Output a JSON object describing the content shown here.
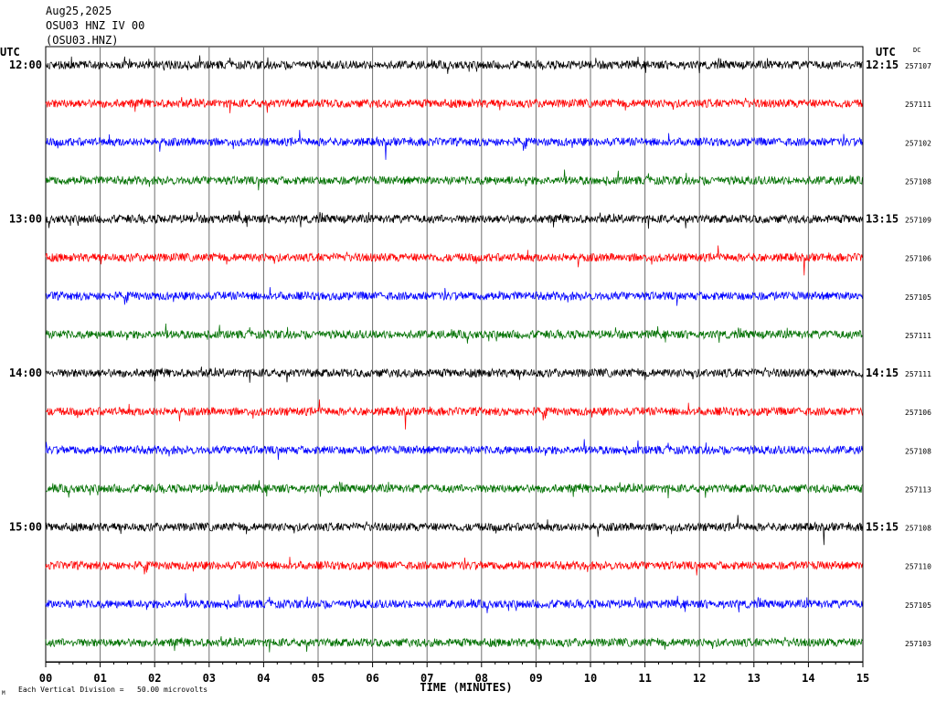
{
  "header": {
    "date": "Aug25,2025",
    "station": "OSU03 HNZ IV 00",
    "code": "(OSU03.HNZ)"
  },
  "utc_left": "UTC",
  "utc_right": "UTC",
  "dc_label": "DC",
  "footer": {
    "scale_text": "Each Vertical Division =   50.00 microvolts"
  },
  "chart_data": {
    "type": "line",
    "title": "",
    "xlabel": "TIME (MINUTES)",
    "x_ticks": [
      "00",
      "01",
      "02",
      "03",
      "04",
      "05",
      "06",
      "07",
      "08",
      "09",
      "10",
      "11",
      "12",
      "13",
      "14",
      "15"
    ],
    "xlim": [
      0,
      15
    ],
    "grid": "vertical lines each minute",
    "trace_colors": [
      "#000000",
      "#ff0000",
      "#0000ff",
      "#007000"
    ],
    "left_time_labels": [
      {
        "row": 0,
        "text": "12:00"
      },
      {
        "row": 4,
        "text": "13:00"
      },
      {
        "row": 8,
        "text": "14:00"
      },
      {
        "row": 12,
        "text": "15:00"
      }
    ],
    "right_time_labels": [
      {
        "row": 0,
        "text": "12:15"
      },
      {
        "row": 4,
        "text": "13:15"
      },
      {
        "row": 8,
        "text": "14:15"
      },
      {
        "row": 12,
        "text": "15:15"
      }
    ],
    "dc_values": [
      "257107",
      "257111",
      "257102",
      "257108",
      "257109",
      "257106",
      "257105",
      "257111",
      "257111",
      "257106",
      "257108",
      "257113",
      "257108",
      "257110",
      "257105",
      "257103"
    ]
  }
}
